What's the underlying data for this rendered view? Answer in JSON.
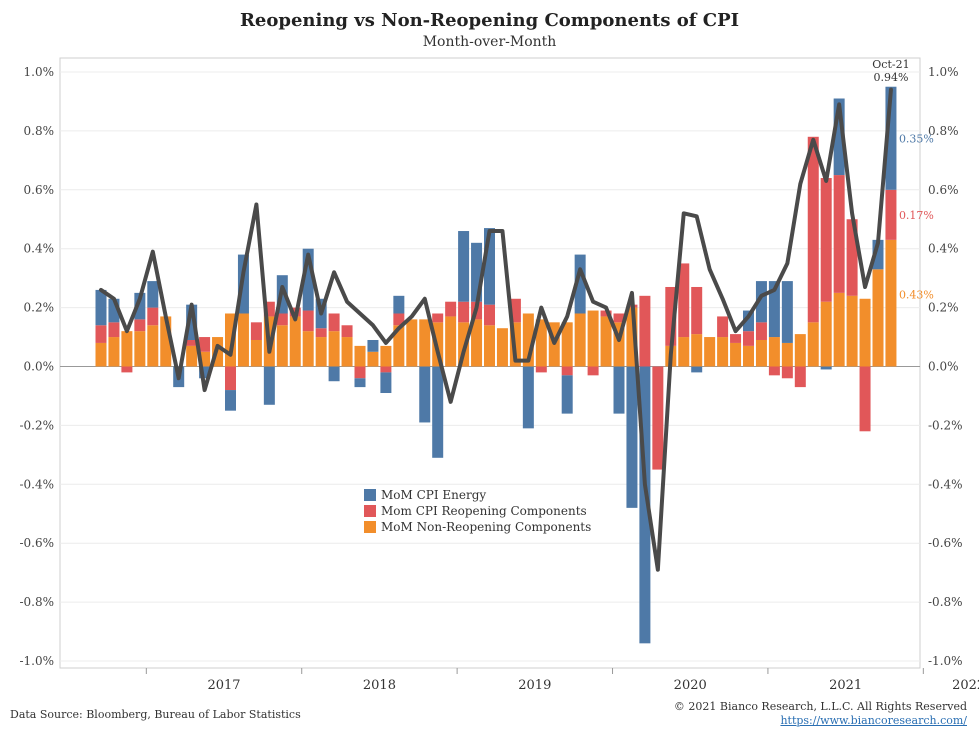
{
  "header": {
    "title": "Reopening vs Non-Reopening Components of CPI",
    "subtitle": "Month-over-Month"
  },
  "footer": {
    "source": "Data Source: Bloomberg, Bureau of Labor Statistics",
    "copyright": "© 2021 Bianco Research, L.L.C. All Rights Reserved",
    "url": "https://www.biancoresearch.com/"
  },
  "chart_data": {
    "type": "bar",
    "stacked": true,
    "title": "Reopening vs Non-Reopening Components of CPI",
    "subtitle": "Month-over-Month",
    "ylim": [
      -1.0,
      1.0
    ],
    "yticks": [
      "1.0%",
      "0.8%",
      "0.6%",
      "0.4%",
      "0.2%",
      "0.0%",
      "-0.2%",
      "-0.4%",
      "-0.6%",
      "-0.8%",
      "-1.0%"
    ],
    "xticks": [
      "2017",
      "2018",
      "2019",
      "2020",
      "2021",
      "2022"
    ],
    "x": [
      "2016-09",
      "2016-10",
      "2016-11",
      "2016-12",
      "2017-01",
      "2017-02",
      "2017-03",
      "2017-04",
      "2017-05",
      "2017-06",
      "2017-07",
      "2017-08",
      "2017-09",
      "2017-10",
      "2017-11",
      "2017-12",
      "2018-01",
      "2018-02",
      "2018-03",
      "2018-04",
      "2018-05",
      "2018-06",
      "2018-07",
      "2018-08",
      "2018-09",
      "2018-10",
      "2018-11",
      "2018-12",
      "2019-01",
      "2019-02",
      "2019-03",
      "2019-04",
      "2019-05",
      "2019-06",
      "2019-07",
      "2019-08",
      "2019-09",
      "2019-10",
      "2019-11",
      "2019-12",
      "2020-01",
      "2020-02",
      "2020-03",
      "2020-04",
      "2020-05",
      "2020-06",
      "2020-07",
      "2020-08",
      "2020-09",
      "2020-10",
      "2020-11",
      "2020-12",
      "2021-01",
      "2021-02",
      "2021-03",
      "2021-04",
      "2021-05",
      "2021-06",
      "2021-07",
      "2021-08",
      "2021-09",
      "2021-10"
    ],
    "legend": {
      "position": "center-left",
      "entries": [
        "MoM CPI Energy",
        "Mom CPI Reopening Components",
        "MoM Non-Reopening Components"
      ]
    },
    "series": [
      {
        "name": "MoM Non-Reopening Components",
        "color": "#f28e2b",
        "values": [
          0.08,
          0.1,
          0.12,
          0.12,
          0.14,
          0.17,
          0.0,
          0.07,
          0.05,
          0.1,
          0.18,
          0.18,
          0.09,
          0.17,
          0.14,
          0.17,
          0.12,
          0.1,
          0.12,
          0.1,
          0.07,
          0.05,
          0.07,
          0.14,
          0.16,
          0.16,
          0.15,
          0.17,
          0.15,
          0.16,
          0.14,
          0.13,
          0.15,
          0.18,
          0.16,
          0.15,
          0.15,
          0.18,
          0.19,
          0.17,
          0.15,
          0.2,
          0.0,
          0.0,
          0.07,
          0.1,
          0.11,
          0.1,
          0.1,
          0.08,
          0.07,
          0.09,
          0.1,
          0.08,
          0.11,
          0.15,
          0.22,
          0.25,
          0.24,
          0.23,
          0.33,
          0.43
        ]
      },
      {
        "name": "Mom CPI Reopening Components",
        "color": "#e15759",
        "values": [
          0.06,
          0.05,
          -0.02,
          0.04,
          0.06,
          0.0,
          0.0,
          0.02,
          0.05,
          0.0,
          -0.08,
          0.0,
          0.06,
          0.05,
          0.04,
          0.03,
          0.07,
          0.03,
          0.06,
          0.04,
          -0.04,
          0.0,
          -0.02,
          0.04,
          0.0,
          0.0,
          0.03,
          0.05,
          0.07,
          0.06,
          0.07,
          0.0,
          0.08,
          0.0,
          -0.02,
          0.0,
          -0.03,
          0.0,
          -0.03,
          0.02,
          0.03,
          0.01,
          0.24,
          -0.35,
          0.2,
          0.25,
          0.16,
          0.0,
          0.07,
          0.03,
          0.05,
          0.06,
          -0.03,
          -0.04,
          -0.07,
          0.63,
          0.42,
          0.4,
          0.26,
          -0.22,
          0.0,
          0.17
        ]
      },
      {
        "name": "MoM CPI Energy",
        "color": "#4e79a7",
        "values": [
          0.12,
          0.08,
          0.0,
          0.09,
          0.09,
          0.0,
          -0.07,
          0.12,
          -0.04,
          0.0,
          -0.07,
          0.2,
          0.0,
          -0.13,
          0.13,
          0.0,
          0.21,
          0.1,
          -0.05,
          0.0,
          -0.03,
          0.04,
          -0.07,
          0.06,
          0.0,
          -0.19,
          -0.31,
          0.0,
          0.24,
          0.2,
          0.26,
          0.0,
          0.0,
          -0.21,
          0.0,
          0.0,
          -0.13,
          0.2,
          0.0,
          0.0,
          -0.16,
          -0.48,
          -0.94,
          0.0,
          0.0,
          0.0,
          -0.02,
          0.0,
          0.0,
          0.0,
          0.07,
          0.14,
          0.19,
          0.21,
          0.0,
          0.0,
          -0.01,
          0.26,
          0.0,
          0.0,
          0.1,
          0.35
        ]
      }
    ],
    "total": {
      "name": "Total CPI MoM",
      "color": "#4a4a4a",
      "values": [
        0.26,
        0.23,
        0.12,
        0.23,
        0.39,
        0.17,
        -0.04,
        0.21,
        -0.08,
        0.07,
        0.04,
        0.32,
        0.55,
        0.05,
        0.27,
        0.16,
        0.38,
        0.18,
        0.32,
        0.22,
        0.18,
        0.14,
        0.08,
        0.13,
        0.17,
        0.23,
        0.05,
        -0.12,
        0.05,
        0.2,
        0.46,
        0.46,
        0.02,
        0.02,
        0.2,
        0.08,
        0.17,
        0.33,
        0.22,
        0.2,
        0.09,
        0.25,
        -0.4,
        -0.69,
        0.04,
        0.52,
        0.51,
        0.33,
        0.23,
        0.12,
        0.17,
        0.24,
        0.26,
        0.35,
        0.62,
        0.77,
        0.63,
        0.89,
        0.52,
        0.27,
        0.42,
        0.94
      ]
    },
    "annotations": [
      {
        "text": "Oct-21",
        "color": "#333333"
      },
      {
        "text": "0.94%",
        "color": "#333333"
      },
      {
        "text": "0.35%",
        "color": "#4e79a7"
      },
      {
        "text": "0.17%",
        "color": "#e15759"
      },
      {
        "text": "0.43%",
        "color": "#f28e2b"
      }
    ]
  }
}
